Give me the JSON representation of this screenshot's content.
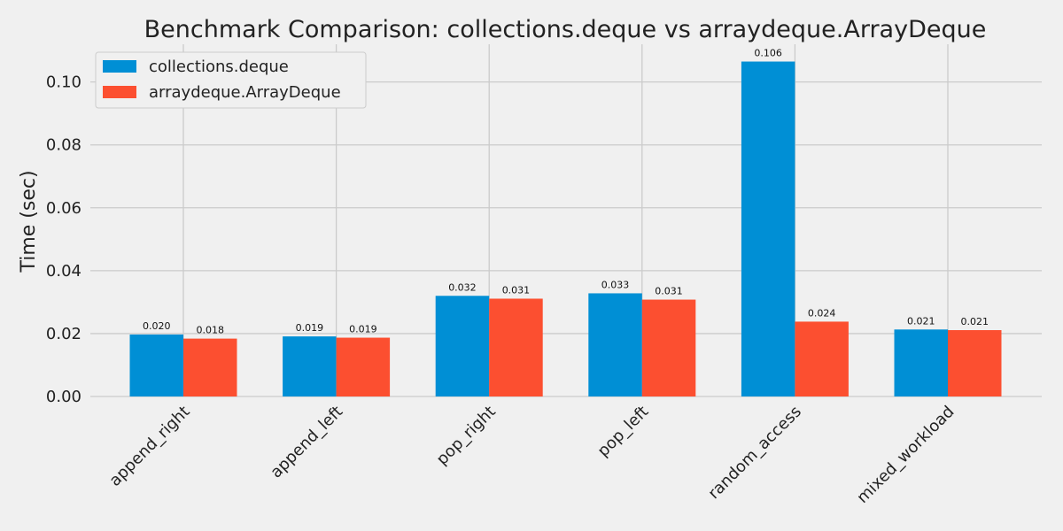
{
  "chart_data": {
    "type": "bar",
    "title": "Benchmark Comparison: collections.deque vs arraydeque.ArrayDeque",
    "xlabel": "",
    "ylabel": "Time (sec)",
    "ylim": [
      0,
      0.112
    ],
    "yticks": [
      "0.00",
      "0.02",
      "0.04",
      "0.06",
      "0.08",
      "0.10"
    ],
    "categories": [
      "append_right",
      "append_left",
      "pop_right",
      "pop_left",
      "random_access",
      "mixed_workload"
    ],
    "series": [
      {
        "name": "collections.deque",
        "color": "#008fd5",
        "values": [
          0.0197,
          0.0191,
          0.032,
          0.0328,
          0.1065,
          0.0213
        ],
        "labels": [
          "0.020",
          "0.019",
          "0.032",
          "0.033",
          "0.106",
          "0.021"
        ]
      },
      {
        "name": "arraydeque.ArrayDeque",
        "color": "#fc4f30",
        "values": [
          0.0184,
          0.0187,
          0.0311,
          0.0308,
          0.0238,
          0.0211
        ],
        "labels": [
          "0.018",
          "0.019",
          "0.031",
          "0.031",
          "0.024",
          "0.021"
        ]
      }
    ],
    "grid": true,
    "legend_position": "top-left"
  }
}
